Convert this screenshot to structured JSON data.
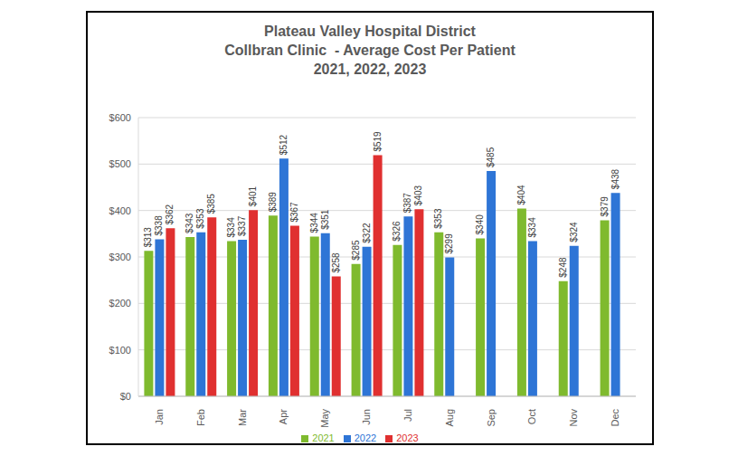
{
  "chart_data": {
    "type": "bar",
    "title": "Plateau Valley Hospital District\nCollbran Clinic  - Average Cost Per Patient\n2021, 2022, 2023",
    "categories": [
      "Jan",
      "Feb",
      "Mar",
      "Apr",
      "May",
      "Jun",
      "Jul",
      "Aug",
      "Sep",
      "Oct",
      "Nov",
      "Dec"
    ],
    "series": [
      {
        "name": "2021",
        "color": "#7fba2e",
        "values": [
          313,
          343,
          334,
          389,
          344,
          285,
          326,
          353,
          340,
          404,
          248,
          379
        ],
        "value_labels": [
          "$313",
          "$343",
          "$334",
          "$389",
          "$344",
          "$285",
          "$326",
          "$353",
          "$340",
          "$404",
          "$248",
          "$379"
        ]
      },
      {
        "name": "2022",
        "color": "#2e75d6",
        "values": [
          338,
          353,
          337,
          512,
          351,
          322,
          387,
          299,
          485,
          334,
          324,
          438
        ],
        "value_labels": [
          "$338",
          "$353",
          "$337",
          "$512",
          "$351",
          "$322",
          "$387",
          "$299",
          "$485",
          "$334",
          "$324",
          "$438"
        ]
      },
      {
        "name": "2023",
        "color": "#e03030",
        "values": [
          362,
          385,
          401,
          367,
          258,
          519,
          403,
          null,
          null,
          null,
          null,
          null
        ],
        "value_labels": [
          "$362",
          "$385",
          "$401",
          "$367",
          "$258",
          "$519",
          "$403",
          null,
          null,
          null,
          null,
          null
        ]
      }
    ],
    "ylim": [
      0,
      600
    ],
    "yticks": [
      {
        "value": 0,
        "label": "$0"
      },
      {
        "value": 100,
        "label": "$100"
      },
      {
        "value": 200,
        "label": "$200"
      },
      {
        "value": 300,
        "label": "$300"
      },
      {
        "value": 400,
        "label": "$400"
      },
      {
        "value": 500,
        "label": "$500"
      },
      {
        "value": 600,
        "label": "$600"
      }
    ],
    "grid": true,
    "legend": "bottom",
    "data_labels": true
  }
}
